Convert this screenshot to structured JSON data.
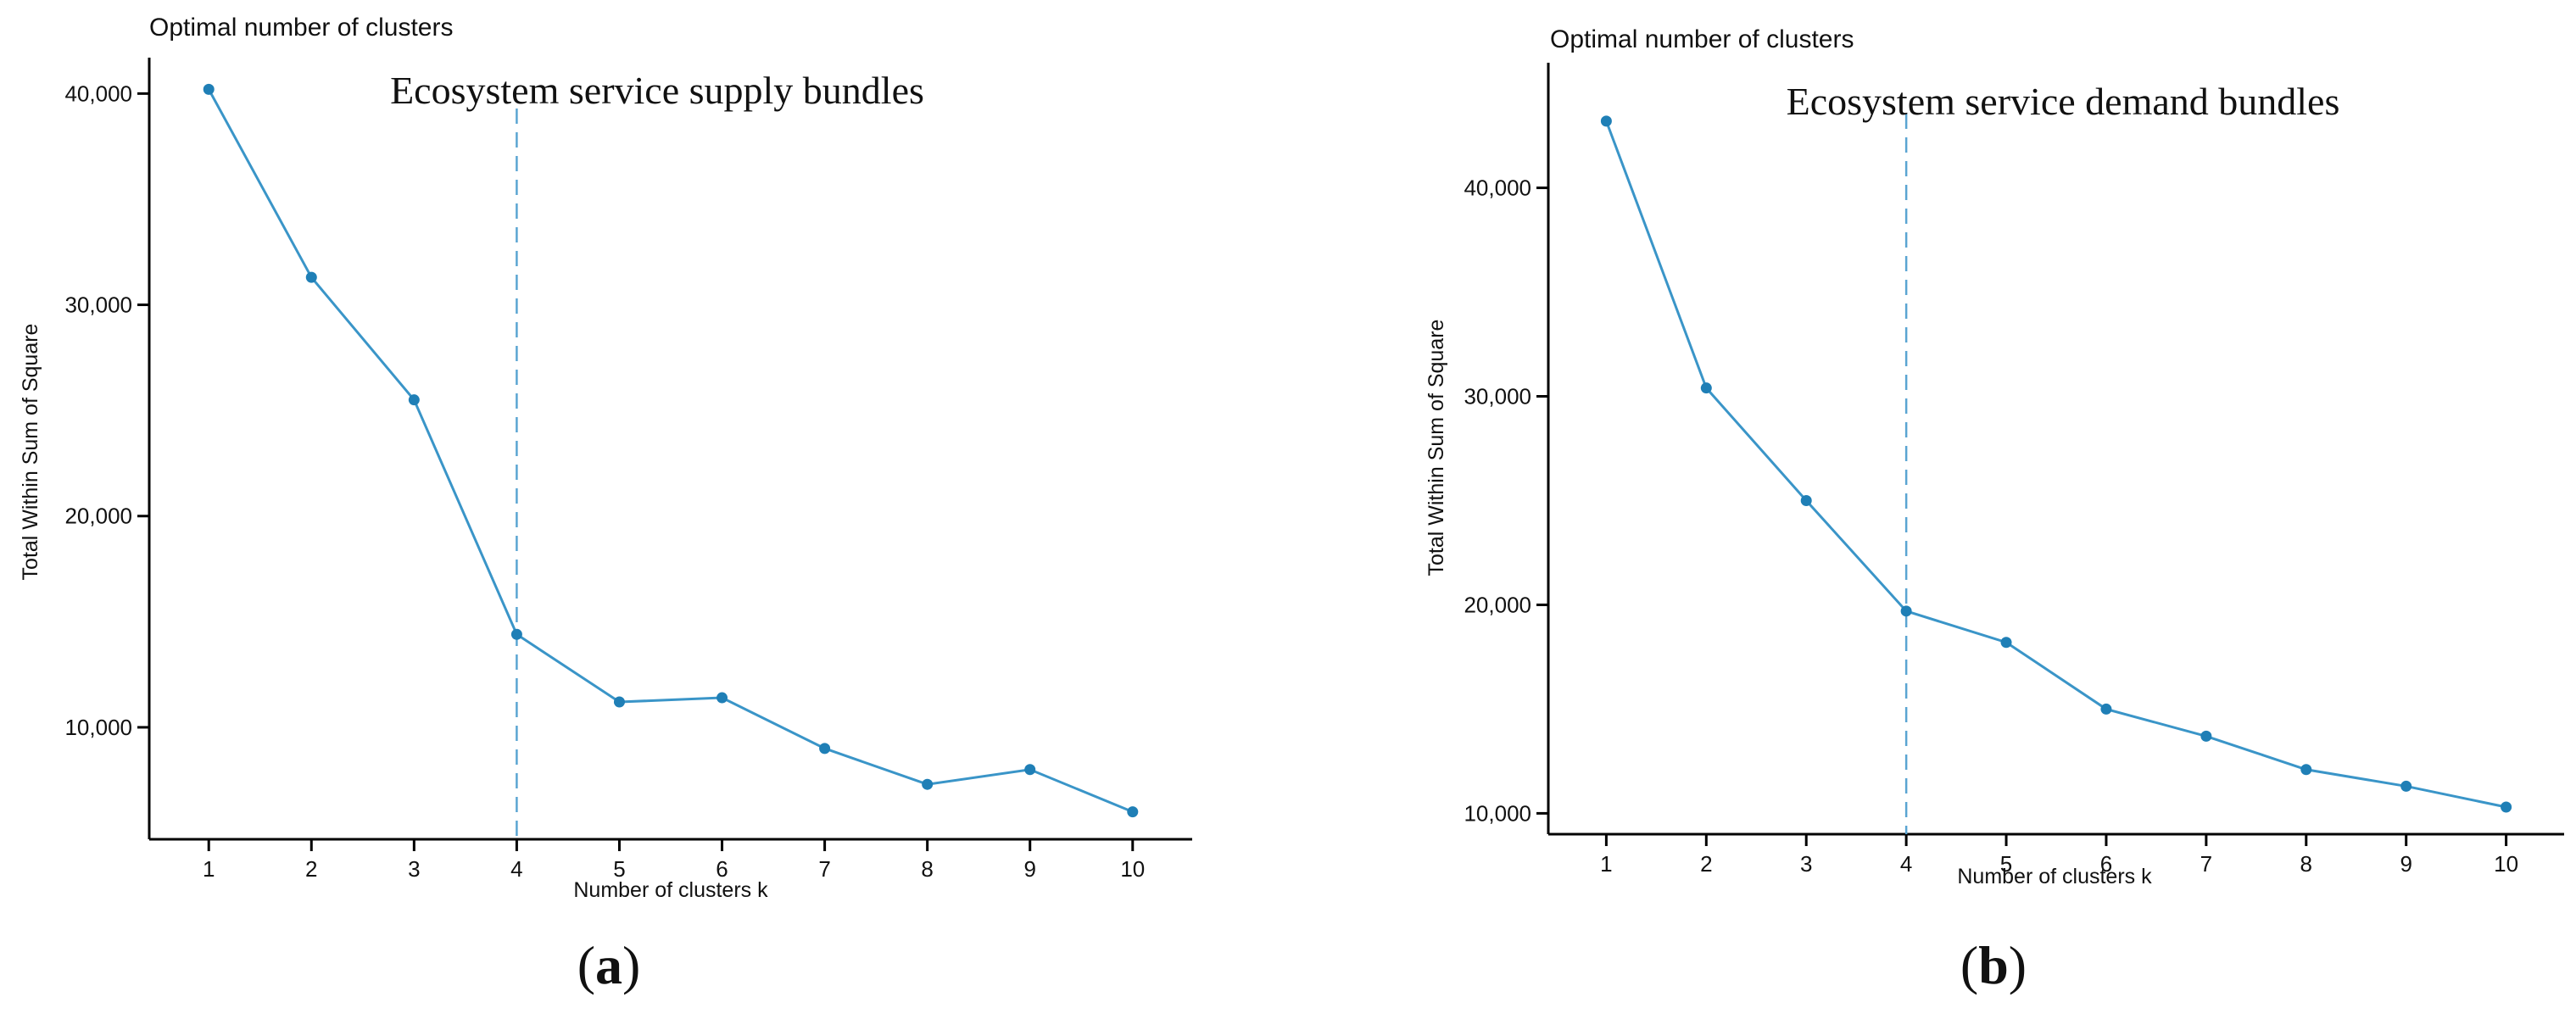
{
  "colors": {
    "series": "#3a95c8",
    "point": "#1f7fb6",
    "vline": "#5aa5d2"
  },
  "chart_data": [
    {
      "type": "line",
      "title": "Optimal number of clusters",
      "annotation": "Ecosystem service supply bundles",
      "panel_label": "a",
      "xlabel": "Number of clusters k",
      "ylabel": "Total Within Sum of Square",
      "x": [
        1,
        2,
        3,
        4,
        5,
        6,
        7,
        8,
        9,
        10
      ],
      "series": [
        {
          "values": [
            40200,
            31300,
            25500,
            14400,
            11200,
            11400,
            9000,
            7300,
            8000,
            6000
          ]
        }
      ],
      "ylim": [
        4700,
        41700
      ],
      "yticks": [
        10000,
        20000,
        30000,
        40000
      ],
      "ytick_labels": [
        "10,000",
        "20,000",
        "30,000",
        "40,000"
      ],
      "xticks": [
        1,
        2,
        3,
        4,
        5,
        6,
        7,
        8,
        9,
        10
      ],
      "xtick_labels": [
        "1",
        "2",
        "3",
        "4",
        "5",
        "6",
        "7",
        "8",
        "9",
        "10"
      ],
      "optimal_k": 4,
      "grid": false
    },
    {
      "type": "line",
      "title": "Optimal number of clusters",
      "annotation": "Ecosystem service demand bundles",
      "panel_label": "b",
      "xlabel": "Number of clusters k",
      "ylabel": "Total Within Sum of Square",
      "x": [
        1,
        2,
        3,
        4,
        5,
        6,
        7,
        8,
        9,
        10
      ],
      "series": [
        {
          "values": [
            43200,
            30400,
            25000,
            19700,
            18200,
            15000,
            13700,
            12100,
            11300,
            10300
          ]
        }
      ],
      "ylim": [
        9000,
        46000
      ],
      "yticks": [
        10000,
        20000,
        30000,
        40000
      ],
      "ytick_labels": [
        "10,000",
        "20,000",
        "30,000",
        "40,000"
      ],
      "xticks": [
        1,
        2,
        3,
        4,
        5,
        6,
        7,
        8,
        9,
        10
      ],
      "xtick_labels": [
        "1",
        "2",
        "3",
        "4",
        "5",
        "6",
        "7",
        "8",
        "9",
        "10"
      ],
      "optimal_k": 4,
      "grid": false
    }
  ]
}
